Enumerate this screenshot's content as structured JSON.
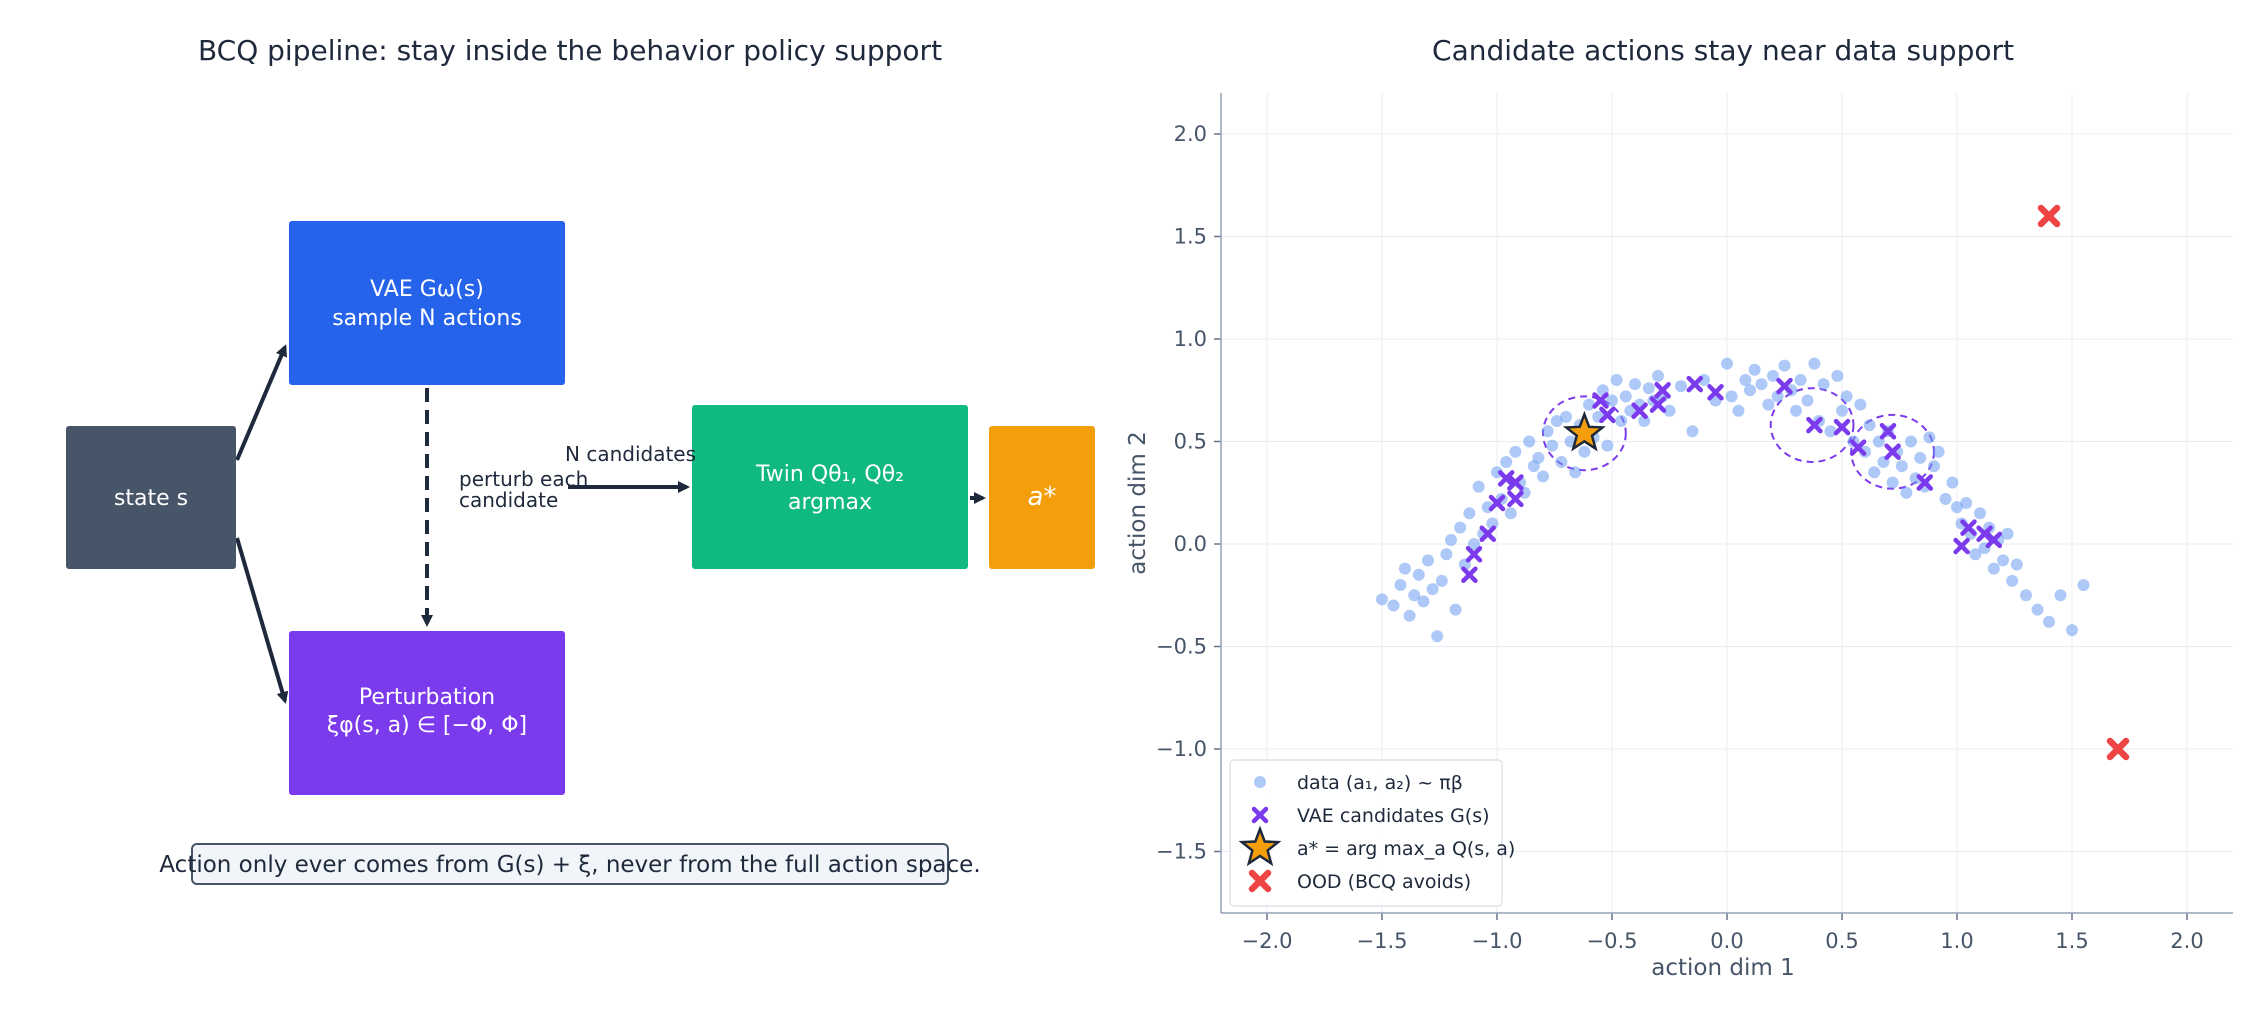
{
  "left_panel": {
    "title": "BCQ pipeline: stay inside the behavior policy support",
    "boxes": {
      "state": {
        "label": "state s",
        "color": "#475569"
      },
      "vae": {
        "line1": "VAE Gω(s)",
        "line2": "sample N actions",
        "color": "#2563eb"
      },
      "perturb": {
        "line1": "Perturbation",
        "line2": "ξφ(s, a) ∈ [−Φ, Φ]",
        "color": "#7c3aed"
      },
      "twinq": {
        "line1": "Twin Qθ₁, Qθ₂",
        "line2": "argmax",
        "color": "#10b981"
      },
      "astar": {
        "label": "a*",
        "color": "#f59e0b"
      }
    },
    "annotations": {
      "perturb_each_1": "perturb each",
      "perturb_each_2": "candidate",
      "n_candidates": "N candidates"
    },
    "note": "Action only ever comes from G(s) + ξ, never from the full action space."
  },
  "chart_data": {
    "type": "scatter",
    "title": "Candidate actions stay near data support",
    "xlabel": "action dim 1",
    "ylabel": "action dim 2",
    "xlim": [
      -2.2,
      2.2
    ],
    "ylim": [
      -1.8,
      2.2
    ],
    "xticks": [
      -2.0,
      -1.5,
      -1.0,
      -0.5,
      0.0,
      0.5,
      1.0,
      1.5,
      2.0
    ],
    "yticks": [
      -1.5,
      -1.0,
      -0.5,
      0.0,
      0.5,
      1.0,
      1.5,
      2.0
    ],
    "xtick_labels": [
      "−2.0",
      "−1.5",
      "−1.0",
      "−0.5",
      "0.0",
      "0.5",
      "1.0",
      "1.5",
      "2.0"
    ],
    "ytick_labels": [
      "−1.5",
      "−1.0",
      "−0.5",
      "0.0",
      "0.5",
      "1.0",
      "1.5",
      "2.0"
    ],
    "grid": true,
    "legend_position": "bottom-left",
    "series": [
      {
        "name": "data (a₁, a₂) ~ πβ",
        "marker": "circle",
        "color": "#6c9cf0",
        "points": [
          [
            -1.5,
            -0.27
          ],
          [
            -1.45,
            -0.3
          ],
          [
            -1.42,
            -0.2
          ],
          [
            -1.4,
            -0.12
          ],
          [
            -1.38,
            -0.35
          ],
          [
            -1.36,
            -0.25
          ],
          [
            -1.34,
            -0.15
          ],
          [
            -1.32,
            -0.28
          ],
          [
            -1.3,
            -0.08
          ],
          [
            -1.28,
            -0.22
          ],
          [
            -1.26,
            -0.45
          ],
          [
            -1.24,
            -0.18
          ],
          [
            -1.22,
            -0.05
          ],
          [
            -1.2,
            0.02
          ],
          [
            -1.18,
            -0.32
          ],
          [
            -1.16,
            0.08
          ],
          [
            -1.14,
            -0.1
          ],
          [
            -1.12,
            0.15
          ],
          [
            -1.1,
            0.0
          ],
          [
            -1.08,
            0.28
          ],
          [
            -1.06,
            0.05
          ],
          [
            -1.04,
            0.18
          ],
          [
            -1.02,
            0.1
          ],
          [
            -1.0,
            0.35
          ],
          [
            -0.98,
            0.22
          ],
          [
            -0.96,
            0.4
          ],
          [
            -0.94,
            0.15
          ],
          [
            -0.92,
            0.45
          ],
          [
            -0.9,
            0.3
          ],
          [
            -0.88,
            0.25
          ],
          [
            -0.86,
            0.5
          ],
          [
            -0.84,
            0.38
          ],
          [
            -0.82,
            0.42
          ],
          [
            -0.8,
            0.33
          ],
          [
            -0.78,
            0.55
          ],
          [
            -0.76,
            0.48
          ],
          [
            -0.74,
            0.6
          ],
          [
            -0.72,
            0.4
          ],
          [
            -0.7,
            0.62
          ],
          [
            -0.68,
            0.5
          ],
          [
            -0.66,
            0.35
          ],
          [
            -0.64,
            0.58
          ],
          [
            -0.62,
            0.45
          ],
          [
            -0.6,
            0.68
          ],
          [
            -0.58,
            0.52
          ],
          [
            -0.56,
            0.62
          ],
          [
            -0.54,
            0.75
          ],
          [
            -0.52,
            0.48
          ],
          [
            -0.5,
            0.7
          ],
          [
            -0.48,
            0.8
          ],
          [
            -0.46,
            0.6
          ],
          [
            -0.44,
            0.72
          ],
          [
            -0.42,
            0.65
          ],
          [
            -0.4,
            0.78
          ],
          [
            -0.38,
            0.68
          ],
          [
            -0.36,
            0.6
          ],
          [
            -0.34,
            0.76
          ],
          [
            -0.32,
            0.7
          ],
          [
            -0.3,
            0.82
          ],
          [
            -0.28,
            0.72
          ],
          [
            -0.25,
            0.65
          ],
          [
            -0.2,
            0.77
          ],
          [
            -0.15,
            0.55
          ],
          [
            -0.1,
            0.8
          ],
          [
            -0.05,
            0.7
          ],
          [
            0.0,
            0.88
          ],
          [
            0.02,
            0.72
          ],
          [
            0.05,
            0.65
          ],
          [
            0.08,
            0.8
          ],
          [
            0.1,
            0.75
          ],
          [
            0.12,
            0.85
          ],
          [
            0.15,
            0.78
          ],
          [
            0.18,
            0.68
          ],
          [
            0.2,
            0.82
          ],
          [
            0.22,
            0.72
          ],
          [
            0.25,
            0.87
          ],
          [
            0.28,
            0.75
          ],
          [
            0.3,
            0.65
          ],
          [
            0.32,
            0.8
          ],
          [
            0.35,
            0.7
          ],
          [
            0.38,
            0.88
          ],
          [
            0.4,
            0.6
          ],
          [
            0.42,
            0.78
          ],
          [
            0.45,
            0.55
          ],
          [
            0.48,
            0.82
          ],
          [
            0.5,
            0.65
          ],
          [
            0.52,
            0.72
          ],
          [
            0.55,
            0.5
          ],
          [
            0.58,
            0.68
          ],
          [
            0.6,
            0.45
          ],
          [
            0.62,
            0.58
          ],
          [
            0.64,
            0.35
          ],
          [
            0.66,
            0.5
          ],
          [
            0.68,
            0.4
          ],
          [
            0.7,
            0.55
          ],
          [
            0.72,
            0.3
          ],
          [
            0.74,
            0.45
          ],
          [
            0.76,
            0.38
          ],
          [
            0.78,
            0.25
          ],
          [
            0.8,
            0.5
          ],
          [
            0.82,
            0.32
          ],
          [
            0.84,
            0.42
          ],
          [
            0.86,
            0.28
          ],
          [
            0.88,
            0.52
          ],
          [
            0.9,
            0.38
          ],
          [
            0.92,
            0.45
          ],
          [
            0.95,
            0.22
          ],
          [
            0.98,
            0.3
          ],
          [
            1.0,
            0.18
          ],
          [
            1.02,
            0.1
          ],
          [
            1.04,
            0.2
          ],
          [
            1.06,
            0.05
          ],
          [
            1.08,
            -0.05
          ],
          [
            1.1,
            0.15
          ],
          [
            1.12,
            -0.02
          ],
          [
            1.14,
            0.08
          ],
          [
            1.16,
            -0.12
          ],
          [
            1.18,
            0.02
          ],
          [
            1.2,
            -0.08
          ],
          [
            1.22,
            0.05
          ],
          [
            1.24,
            -0.18
          ],
          [
            1.26,
            -0.1
          ],
          [
            1.3,
            -0.25
          ],
          [
            1.35,
            -0.32
          ],
          [
            1.4,
            -0.38
          ],
          [
            1.45,
            -0.25
          ],
          [
            1.5,
            -0.42
          ],
          [
            1.55,
            -0.2
          ]
        ]
      },
      {
        "name": "VAE candidates G(s)",
        "marker": "x",
        "color": "#7c3aed",
        "points": [
          [
            -1.12,
            -0.15
          ],
          [
            -1.1,
            -0.05
          ],
          [
            -1.04,
            0.05
          ],
          [
            -1.0,
            0.2
          ],
          [
            -0.96,
            0.32
          ],
          [
            -0.92,
            0.3
          ],
          [
            -0.92,
            0.22
          ],
          [
            -0.55,
            0.7
          ],
          [
            -0.52,
            0.63
          ],
          [
            -0.38,
            0.65
          ],
          [
            -0.3,
            0.68
          ],
          [
            -0.28,
            0.75
          ],
          [
            -0.14,
            0.78
          ],
          [
            -0.05,
            0.74
          ],
          [
            0.25,
            0.77
          ],
          [
            0.38,
            0.58
          ],
          [
            0.5,
            0.57
          ],
          [
            0.57,
            0.47
          ],
          [
            0.7,
            0.55
          ],
          [
            0.72,
            0.45
          ],
          [
            0.86,
            0.3
          ],
          [
            1.02,
            -0.01
          ],
          [
            1.05,
            0.08
          ],
          [
            1.12,
            0.05
          ],
          [
            1.16,
            0.02
          ]
        ]
      },
      {
        "name": "a* = arg max_a Q(s, a)",
        "marker": "star",
        "color": "#f59e0b",
        "points": [
          [
            -0.62,
            0.54
          ]
        ]
      },
      {
        "name": "OOD (BCQ avoids)",
        "marker": "X",
        "color": "#ef4444",
        "points": [
          [
            1.4,
            1.6
          ],
          [
            1.7,
            -1.0
          ]
        ]
      }
    ],
    "circles": [
      {
        "cx": -0.62,
        "cy": 0.54,
        "r": 0.18
      },
      {
        "cx": 0.37,
        "cy": 0.58,
        "r": 0.18
      },
      {
        "cx": 0.72,
        "cy": 0.45,
        "r": 0.18
      }
    ]
  }
}
